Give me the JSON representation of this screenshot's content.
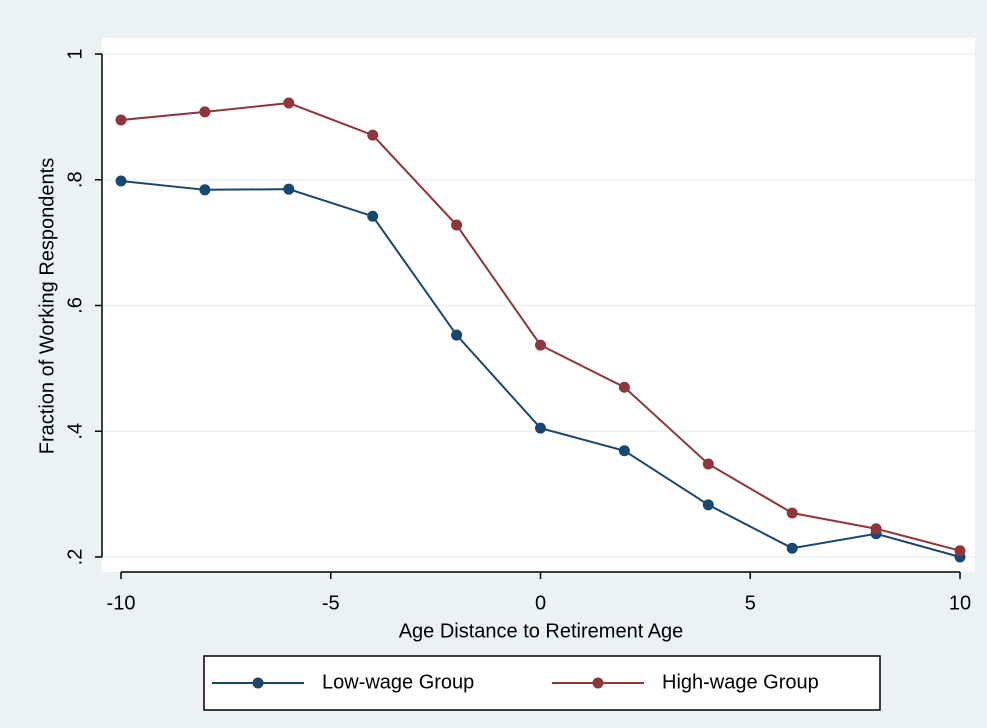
{
  "chart_data": {
    "type": "line",
    "x_label": "Age Distance to Retirement Age",
    "y_label": "Fraction of Working Respondents",
    "x": [
      -10,
      -8,
      -6,
      -4,
      -2,
      0,
      2,
      4,
      6,
      8,
      10
    ],
    "series": [
      {
        "name": "Low-wage Group",
        "color": "#1a476f",
        "values": [
          0.798,
          0.784,
          0.785,
          0.742,
          0.553,
          0.405,
          0.369,
          0.283,
          0.214,
          0.237,
          0.2
        ]
      },
      {
        "name": "High-wage Group",
        "color": "#90353b",
        "values": [
          0.895,
          0.908,
          0.922,
          0.871,
          0.728,
          0.537,
          0.47,
          0.348,
          0.27,
          0.245,
          0.21
        ]
      }
    ],
    "xlim": [
      -10,
      10
    ],
    "xticks": [
      -10,
      -5,
      0,
      5,
      10
    ],
    "ylim": [
      0.2,
      1
    ],
    "yticks": [
      {
        "value": 0.2,
        "label": ".2"
      },
      {
        "value": 0.4,
        "label": ".4"
      },
      {
        "value": 0.6,
        "label": ".6"
      },
      {
        "value": 0.8,
        "label": ".8"
      },
      1
    ],
    "grid": true,
    "legend": "bottom"
  }
}
